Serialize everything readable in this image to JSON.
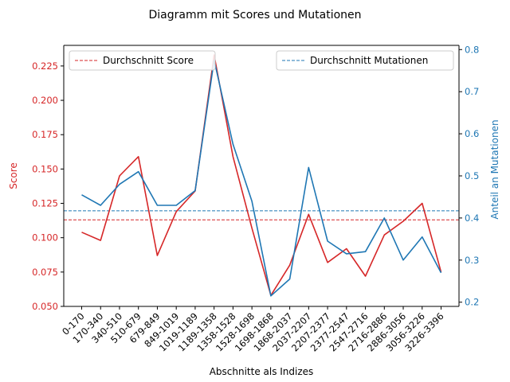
{
  "chart_data": {
    "type": "line",
    "title": "Diagramm mit Scores und Mutationen",
    "xlabel": "Abschnitte als Indizes",
    "ylabel_left": "Score",
    "ylabel_right": "Anteil an Mutationen",
    "categories": [
      "0-170",
      "170-340",
      "340-510",
      "510-679",
      "679-849",
      "849-1019",
      "1019-1189",
      "1189-1358",
      "1358-1528",
      "1528-1698",
      "1698-1868",
      "1868-2037",
      "2037-2207",
      "2207-2377",
      "2377-2547",
      "2547-2716",
      "2716-2886",
      "2886-3056",
      "3056-3226",
      "3226-3396"
    ],
    "ylim_left": [
      0.05,
      0.24
    ],
    "ylim_right": [
      0.19,
      0.81
    ],
    "yticks_left": [
      "0.050",
      "0.075",
      "0.100",
      "0.125",
      "0.150",
      "0.175",
      "0.200",
      "0.225"
    ],
    "yticks_right": [
      "0.2",
      "0.3",
      "0.4",
      "0.5",
      "0.6",
      "0.7",
      "0.8"
    ],
    "series": [
      {
        "name": "",
        "axis": "left",
        "color": "#d62728",
        "values": [
          0.104,
          0.098,
          0.145,
          0.159,
          0.087,
          0.119,
          0.134,
          0.233,
          0.159,
          0.107,
          0.058,
          0.08,
          0.117,
          0.082,
          0.092,
          0.072,
          0.102,
          0.112,
          0.125,
          0.075
        ]
      },
      {
        "name": "",
        "axis": "right",
        "color": "#1f77b4",
        "values": [
          0.455,
          0.43,
          0.48,
          0.51,
          0.43,
          0.43,
          0.465,
          0.775,
          0.575,
          0.44,
          0.215,
          0.255,
          0.52,
          0.345,
          0.315,
          0.32,
          0.4,
          0.3,
          0.355,
          0.27
        ]
      }
    ],
    "reference_lines": [
      {
        "name": "Durchschnitt Score",
        "axis": "left",
        "value": 0.113,
        "color": "#d62728"
      },
      {
        "name": "Durchschnitt Mutationen",
        "axis": "right",
        "value": 0.417,
        "color": "#1f77b4"
      }
    ],
    "legends": [
      {
        "placement": "top-left",
        "label": "Durchschnitt Score"
      },
      {
        "placement": "top-right",
        "label": "Durchschnitt Mutationen"
      }
    ],
    "grid": false
  }
}
